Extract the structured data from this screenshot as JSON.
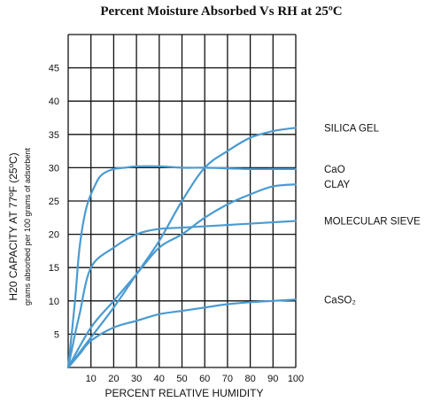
{
  "chart_data": {
    "type": "line",
    "title": "Percent Moisture Absorbed Vs RH at 25ºC",
    "xlabel": "PERCENT RELATIVE HUMIDITY",
    "ylabel": "H20 CAPACITY AT 77ºF (25ºC)",
    "ylabel_sub": "grams absorbed per 100 grams of adsorbent",
    "xlim": [
      0,
      100
    ],
    "ylim": [
      0,
      50
    ],
    "x_ticks": [
      10,
      20,
      30,
      40,
      50,
      60,
      70,
      80,
      90,
      100
    ],
    "y_ticks": [
      5,
      10,
      15,
      20,
      25,
      30,
      35,
      40,
      45
    ],
    "grid": true,
    "legend": "right",
    "series": [
      {
        "name": "SILICA GEL",
        "x": [
          0,
          10,
          20,
          30,
          40,
          50,
          60,
          70,
          80,
          90,
          100
        ],
        "y": [
          0,
          4.5,
          9,
          14,
          19,
          25,
          30,
          32.5,
          34.5,
          35.5,
          36
        ]
      },
      {
        "name": "CaO",
        "x": [
          0,
          3,
          5,
          8,
          12,
          15,
          20,
          25,
          30,
          40,
          50,
          60,
          70,
          80,
          90,
          100
        ],
        "y": [
          0,
          10,
          18,
          24,
          27.5,
          29,
          29.8,
          30,
          30.2,
          30.2,
          30,
          30,
          29.9,
          29.8,
          29.8,
          29.8
        ]
      },
      {
        "name": "CLAY",
        "x": [
          0,
          10,
          20,
          30,
          40,
          50,
          60,
          70,
          80,
          90,
          100
        ],
        "y": [
          0,
          6,
          10,
          14,
          18,
          20,
          22.5,
          24.5,
          26,
          27.2,
          27.5
        ]
      },
      {
        "name": "MOLECULAR SIEVE",
        "x": [
          0,
          3,
          5,
          10,
          20,
          30,
          40,
          50,
          60,
          70,
          80,
          90,
          100
        ],
        "y": [
          0,
          5,
          8,
          15,
          18,
          20,
          20.8,
          21,
          21.2,
          21.4,
          21.6,
          21.8,
          22
        ]
      },
      {
        "name": "CaSO₂",
        "x": [
          0,
          5,
          10,
          20,
          30,
          40,
          50,
          60,
          70,
          80,
          90,
          100
        ],
        "y": [
          0,
          2,
          4,
          6,
          7,
          8,
          8.5,
          9,
          9.5,
          9.8,
          10,
          10.2
        ]
      }
    ],
    "colors": {
      "curve": "#4a9bd1",
      "grid": "#111111"
    }
  }
}
